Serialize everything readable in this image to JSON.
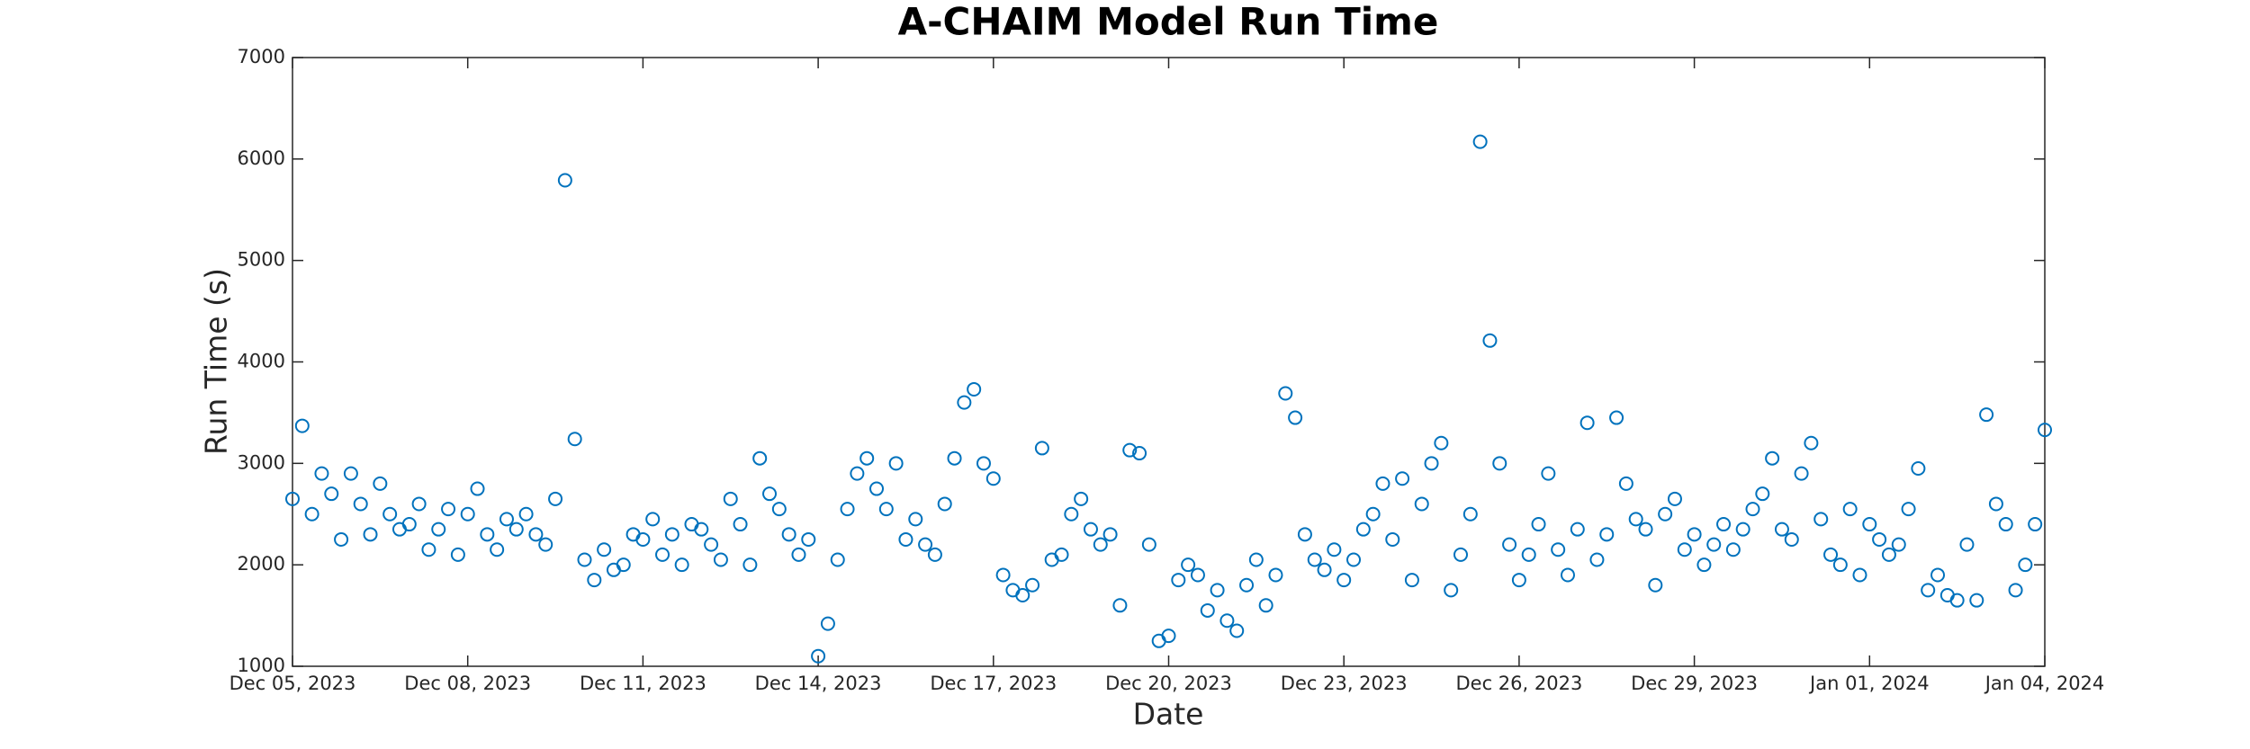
{
  "chart_data": {
    "type": "scatter",
    "title": "A-CHAIM Model Run Time",
    "xlabel": "Date",
    "ylabel": "Run Time (s)",
    "series": [
      {
        "name": "Run Time",
        "color": "#0072bd",
        "x": [
          "2023-12-05T00:00",
          "2023-12-05T04:00",
          "2023-12-05T08:00",
          "2023-12-05T12:00",
          "2023-12-05T16:00",
          "2023-12-05T20:00",
          "2023-12-06T00:00",
          "2023-12-06T04:00",
          "2023-12-06T08:00",
          "2023-12-06T12:00",
          "2023-12-06T16:00",
          "2023-12-06T20:00",
          "2023-12-07T00:00",
          "2023-12-07T04:00",
          "2023-12-07T08:00",
          "2023-12-07T12:00",
          "2023-12-07T16:00",
          "2023-12-07T20:00",
          "2023-12-08T00:00",
          "2023-12-08T04:00",
          "2023-12-08T08:00",
          "2023-12-08T12:00",
          "2023-12-08T16:00",
          "2023-12-08T20:00",
          "2023-12-09T00:00",
          "2023-12-09T04:00",
          "2023-12-09T08:00",
          "2023-12-09T12:00",
          "2023-12-09T16:00",
          "2023-12-09T20:00",
          "2023-12-10T00:00",
          "2023-12-10T04:00",
          "2023-12-10T08:00",
          "2023-12-10T12:00",
          "2023-12-10T16:00",
          "2023-12-10T20:00",
          "2023-12-11T00:00",
          "2023-12-11T04:00",
          "2023-12-11T08:00",
          "2023-12-11T12:00",
          "2023-12-11T16:00",
          "2023-12-11T20:00",
          "2023-12-12T00:00",
          "2023-12-12T04:00",
          "2023-12-12T08:00",
          "2023-12-12T12:00",
          "2023-12-12T16:00",
          "2023-12-12T20:00",
          "2023-12-13T00:00",
          "2023-12-13T04:00",
          "2023-12-13T08:00",
          "2023-12-13T12:00",
          "2023-12-13T16:00",
          "2023-12-13T20:00",
          "2023-12-14T00:00",
          "2023-12-14T04:00",
          "2023-12-14T08:00",
          "2023-12-14T12:00",
          "2023-12-14T16:00",
          "2023-12-14T20:00",
          "2023-12-15T00:00",
          "2023-12-15T04:00",
          "2023-12-15T08:00",
          "2023-12-15T12:00",
          "2023-12-15T16:00",
          "2023-12-15T20:00",
          "2023-12-16T00:00",
          "2023-12-16T04:00",
          "2023-12-16T08:00",
          "2023-12-16T12:00",
          "2023-12-16T16:00",
          "2023-12-16T20:00",
          "2023-12-17T00:00",
          "2023-12-17T04:00",
          "2023-12-17T08:00",
          "2023-12-17T12:00",
          "2023-12-17T16:00",
          "2023-12-17T20:00",
          "2023-12-18T00:00",
          "2023-12-18T04:00",
          "2023-12-18T08:00",
          "2023-12-18T12:00",
          "2023-12-18T16:00",
          "2023-12-18T20:00",
          "2023-12-19T00:00",
          "2023-12-19T04:00",
          "2023-12-19T08:00",
          "2023-12-19T12:00",
          "2023-12-19T16:00",
          "2023-12-19T20:00",
          "2023-12-20T00:00",
          "2023-12-20T04:00",
          "2023-12-20T08:00",
          "2023-12-20T12:00",
          "2023-12-20T16:00",
          "2023-12-20T20:00",
          "2023-12-21T00:00",
          "2023-12-21T04:00",
          "2023-12-21T08:00",
          "2023-12-21T12:00",
          "2023-12-21T16:00",
          "2023-12-21T20:00",
          "2023-12-22T00:00",
          "2023-12-22T04:00",
          "2023-12-22T08:00",
          "2023-12-22T12:00",
          "2023-12-22T16:00",
          "2023-12-22T20:00",
          "2023-12-23T00:00",
          "2023-12-23T04:00",
          "2023-12-23T08:00",
          "2023-12-23T12:00",
          "2023-12-23T16:00",
          "2023-12-23T20:00",
          "2023-12-24T00:00",
          "2023-12-24T04:00",
          "2023-12-24T08:00",
          "2023-12-24T12:00",
          "2023-12-24T16:00",
          "2023-12-24T20:00",
          "2023-12-25T00:00",
          "2023-12-25T04:00",
          "2023-12-25T08:00",
          "2023-12-25T12:00",
          "2023-12-25T16:00",
          "2023-12-25T20:00",
          "2023-12-26T00:00",
          "2023-12-26T04:00",
          "2023-12-26T08:00",
          "2023-12-26T12:00",
          "2023-12-26T16:00",
          "2023-12-26T20:00",
          "2023-12-27T00:00",
          "2023-12-27T04:00",
          "2023-12-27T08:00",
          "2023-12-27T12:00",
          "2023-12-27T16:00",
          "2023-12-27T20:00",
          "2023-12-28T00:00",
          "2023-12-28T04:00",
          "2023-12-28T08:00",
          "2023-12-28T12:00",
          "2023-12-28T16:00",
          "2023-12-28T20:00",
          "2023-12-29T00:00",
          "2023-12-29T04:00",
          "2023-12-29T08:00",
          "2023-12-29T12:00",
          "2023-12-29T16:00",
          "2023-12-29T20:00",
          "2023-12-30T00:00",
          "2023-12-30T04:00",
          "2023-12-30T08:00",
          "2023-12-30T12:00",
          "2023-12-30T16:00",
          "2023-12-30T20:00",
          "2023-12-31T00:00",
          "2023-12-31T04:00",
          "2023-12-31T08:00",
          "2023-12-31T12:00",
          "2023-12-31T16:00",
          "2023-12-31T20:00",
          "2024-01-01T00:00",
          "2024-01-01T04:00",
          "2024-01-01T08:00",
          "2024-01-01T12:00",
          "2024-01-01T16:00",
          "2024-01-01T20:00",
          "2024-01-02T00:00",
          "2024-01-02T04:00",
          "2024-01-02T08:00",
          "2024-01-02T12:00",
          "2024-01-02T16:00",
          "2024-01-02T20:00",
          "2024-01-03T00:00",
          "2024-01-03T04:00",
          "2024-01-03T08:00",
          "2024-01-03T12:00",
          "2024-01-03T16:00",
          "2024-01-03T20:00",
          "2024-01-04T00:00"
        ],
        "values": [
          2650,
          3370,
          2500,
          2900,
          2700,
          2250,
          2900,
          2600,
          2300,
          2800,
          2500,
          2350,
          2400,
          2600,
          2150,
          2350,
          2550,
          2100,
          2500,
          2750,
          2300,
          2150,
          2450,
          2350,
          2500,
          2300,
          2200,
          2650,
          5790,
          3240,
          2050,
          1850,
          2150,
          1950,
          2000,
          2300,
          2250,
          2450,
          2100,
          2300,
          2000,
          2400,
          2350,
          2200,
          2050,
          2650,
          2400,
          2000,
          3050,
          2700,
          2550,
          2300,
          2100,
          2250,
          1100,
          1420,
          2050,
          2550,
          2900,
          3050,
          2750,
          2550,
          3000,
          2250,
          2450,
          2200,
          2100,
          2600,
          3050,
          3600,
          3730,
          3000,
          2850,
          1900,
          1750,
          1700,
          1800,
          3150,
          2050,
          2100,
          2500,
          2650,
          2350,
          2200,
          2300,
          1600,
          3130,
          3100,
          2200,
          1250,
          1300,
          1850,
          2000,
          1900,
          1550,
          1750,
          1450,
          1350,
          1800,
          2050,
          1600,
          1900,
          3690,
          3450,
          2300,
          2050,
          1950,
          2150,
          1850,
          2050,
          2350,
          2500,
          2800,
          2250,
          2850,
          1850,
          2600,
          3000,
          3200,
          1750,
          2100,
          2500,
          6170,
          4210,
          3000,
          2200,
          1850,
          2100,
          2400,
          2900,
          2150,
          1900,
          2350,
          3400,
          2050,
          2300,
          3450,
          2800,
          2450,
          2350,
          1800,
          2500,
          2650,
          2150,
          2300,
          2000,
          2200,
          2400,
          2150,
          2350,
          2550,
          2700,
          3050,
          2350,
          2250,
          2900,
          3200,
          2450,
          2100,
          2000,
          2550,
          1900,
          2400,
          2250,
          2100,
          2200,
          2550,
          2950,
          1750,
          1900,
          1700,
          1650,
          2200,
          1650,
          3480,
          2600,
          2400,
          1750,
          2000,
          2400,
          3330
        ]
      }
    ],
    "xlim": [
      "2023-12-05T00:00",
      "2024-01-04T00:00"
    ],
    "xticks": [
      {
        "value": "2023-12-05T00:00",
        "label": "Dec 05, 2023"
      },
      {
        "value": "2023-12-08T00:00",
        "label": "Dec 08, 2023"
      },
      {
        "value": "2023-12-11T00:00",
        "label": "Dec 11, 2023"
      },
      {
        "value": "2023-12-14T00:00",
        "label": "Dec 14, 2023"
      },
      {
        "value": "2023-12-17T00:00",
        "label": "Dec 17, 2023"
      },
      {
        "value": "2023-12-20T00:00",
        "label": "Dec 20, 2023"
      },
      {
        "value": "2023-12-23T00:00",
        "label": "Dec 23, 2023"
      },
      {
        "value": "2023-12-26T00:00",
        "label": "Dec 26, 2023"
      },
      {
        "value": "2023-12-29T00:00",
        "label": "Dec 29, 2023"
      },
      {
        "value": "2024-01-01T00:00",
        "label": "Jan 01, 2024"
      },
      {
        "value": "2024-01-04T00:00",
        "label": "Jan 04, 2024"
      }
    ],
    "ylim": [
      1000,
      7000
    ],
    "yticks": [
      1000,
      2000,
      3000,
      4000,
      5000,
      6000,
      7000
    ],
    "grid": false
  }
}
